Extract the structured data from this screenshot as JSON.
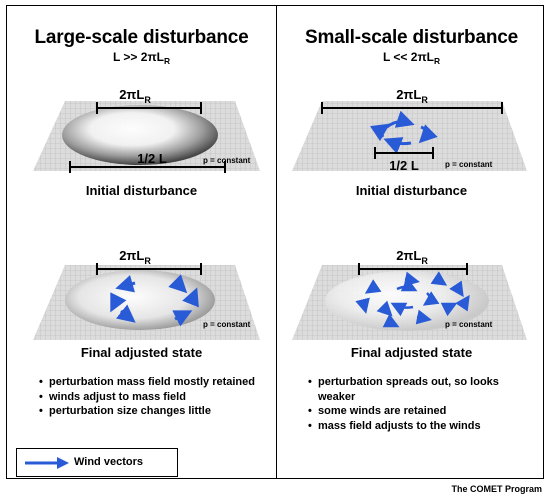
{
  "left": {
    "title": "Large-scale disturbance",
    "subtitle_main": "L >> 2πL",
    "subtitle_sub": "R",
    "top_panel": {
      "scale_label_main": "2πL",
      "scale_label_sub": "R",
      "half_label": "1/2 L",
      "pressure_label": "p = constant",
      "caption": "Initial disturbance"
    },
    "bottom_panel": {
      "scale_label_main": "2πL",
      "scale_label_sub": "R",
      "pressure_label": "p = constant",
      "caption": "Final adjusted state"
    },
    "bullets": [
      "perturbation mass field mostly retained",
      "winds adjust to mass field",
      "perturbation size changes little"
    ]
  },
  "right": {
    "title": "Small-scale disturbance",
    "subtitle_main": "L << 2πL",
    "subtitle_sub": "R",
    "top_panel": {
      "scale_label_main": "2πL",
      "scale_label_sub": "R",
      "half_label": "1/2 L",
      "pressure_label": "p = constant",
      "caption": "Initial disturbance"
    },
    "bottom_panel": {
      "scale_label_main": "2πL",
      "scale_label_sub": "R",
      "pressure_label": "p = constant",
      "caption": "Final adjusted state"
    },
    "bullets": [
      "perturbation spreads out, so looks weaker",
      "some winds are retained",
      "mass field adjusts to the winds"
    ]
  },
  "legend": {
    "label": "Wind vectors",
    "icon": "blue-arrow-icon"
  },
  "credit": "The COMET Program",
  "colors": {
    "arrow": "#2a5bd7",
    "grid_line": "#bdbdbd",
    "surface": "#d8d8d8"
  }
}
